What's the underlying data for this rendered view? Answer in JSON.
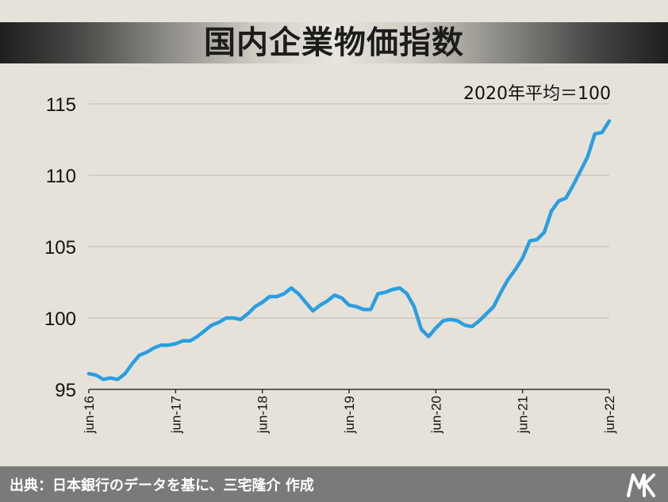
{
  "header": {
    "title": "国内企業物価指数"
  },
  "note": "2020年平均＝100",
  "footer": {
    "source": "出典：日本銀行のデータを基に、三宅隆介 作成"
  },
  "colors": {
    "line": "#2a9ee0",
    "grid": "#bdbab3",
    "axis": "#333333",
    "background": "#e6e2d9",
    "footer": "#7a7a7a"
  },
  "logo_icon": "mk-logo-icon",
  "chart_data": {
    "type": "line",
    "title": "国内企業物価指数",
    "xlabel": "",
    "ylabel": "",
    "ylim": [
      95,
      115
    ],
    "yticks": [
      95,
      100,
      105,
      110,
      115
    ],
    "grid": true,
    "xtick_labels": [
      "jun-16",
      "jun-17",
      "jun-18",
      "jun-19",
      "jun-20",
      "jun-21",
      "jun-22"
    ],
    "xtick_index": [
      0,
      12,
      24,
      36,
      48,
      60,
      72
    ],
    "x_start": "2016-06",
    "x_end": "2022-06",
    "series": [
      {
        "values": [
          96.1,
          96.0,
          95.7,
          95.8,
          95.7,
          96.1,
          96.8,
          97.4,
          97.6,
          97.9,
          98.1,
          98.1,
          98.2,
          98.4,
          98.4,
          98.7,
          99.1,
          99.5,
          99.7,
          100.0,
          100.0,
          99.9,
          100.3,
          100.8,
          101.1,
          101.5,
          101.5,
          101.7,
          102.1,
          101.7,
          101.1,
          100.5,
          100.9,
          101.2,
          101.6,
          101.4,
          100.9,
          100.8,
          100.6,
          100.6,
          101.7,
          101.8,
          102.0,
          102.1,
          101.7,
          100.8,
          99.2,
          98.7,
          99.3,
          99.8,
          99.9,
          99.8,
          99.5,
          99.4,
          99.8,
          100.3,
          100.8,
          101.8,
          102.7,
          103.4,
          104.2,
          105.4,
          105.5,
          106.0,
          107.5,
          108.2,
          108.4,
          109.3,
          110.3,
          111.3,
          112.9,
          113.0,
          113.8
        ]
      }
    ]
  }
}
